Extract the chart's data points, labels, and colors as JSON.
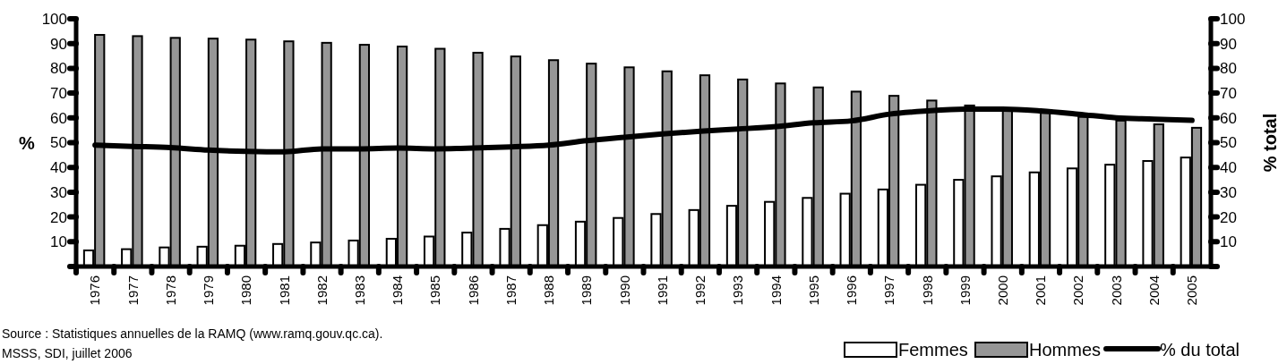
{
  "chart_data": {
    "type": "bar",
    "ylabel": "%",
    "y2label": "% total",
    "categories": [
      "1976",
      "1977",
      "1978",
      "1979",
      "1980",
      "1981",
      "1982",
      "1983",
      "1984",
      "1985",
      "1986",
      "1987",
      "1988",
      "1989",
      "1990",
      "1991",
      "1992",
      "1993",
      "1994",
      "1995",
      "1996",
      "1997",
      "1998",
      "1999",
      "2000",
      "2001",
      "2002",
      "2003",
      "2004",
      "2005"
    ],
    "series": [
      {
        "name": "Femmes",
        "color": "#ffffff",
        "values": [
          6.5,
          7,
          7.7,
          8,
          8.4,
          9.1,
          9.7,
          10.5,
          11.2,
          12.1,
          13.7,
          15.2,
          16.7,
          18.1,
          19.6,
          21.2,
          22.8,
          24.5,
          26.1,
          27.7,
          29.4,
          31.1,
          33,
          35,
          36.4,
          38,
          39.6,
          41.1,
          42.6,
          44
        ]
      },
      {
        "name": "Hommes",
        "color": "#969696",
        "values": [
          93.5,
          93,
          92.3,
          92,
          91.6,
          90.9,
          90.3,
          89.5,
          88.8,
          87.9,
          86.3,
          84.8,
          83.3,
          81.9,
          80.4,
          78.8,
          77.2,
          75.5,
          73.9,
          72.3,
          70.6,
          68.9,
          67,
          65,
          63.6,
          62,
          60.4,
          58.9,
          57.4,
          56
        ]
      },
      {
        "name": "% du total",
        "type": "line",
        "axis": "y2",
        "color": "#000000",
        "values": [
          49,
          48.5,
          48,
          47,
          46.5,
          46.3,
          47.5,
          47.5,
          47.8,
          47.5,
          47.8,
          48.3,
          49,
          50.8,
          52.2,
          53.5,
          54.6,
          55.5,
          56.5,
          58,
          58.8,
          61.5,
          62.8,
          63.5,
          63.5,
          62.8,
          61.5,
          60,
          59.5,
          59
        ]
      }
    ],
    "ylim": [
      0,
      100
    ],
    "yticks": [
      {
        "value": 0,
        "label": null
      },
      10,
      20,
      30,
      40,
      50,
      60,
      70,
      80,
      90,
      100
    ],
    "y2lim": [
      0,
      100
    ],
    "y2ticks": [
      {
        "value": 0,
        "label": null
      },
      10,
      20,
      30,
      40,
      50,
      60,
      70,
      80,
      90,
      100
    ],
    "legend": "bottom right",
    "grid": false,
    "annotations": [
      "Source : Statistiques annuelles de la RAMQ (www.ramq.gouv.qc.ca).",
      "MSSS, SDI, juillet 2006"
    ]
  }
}
